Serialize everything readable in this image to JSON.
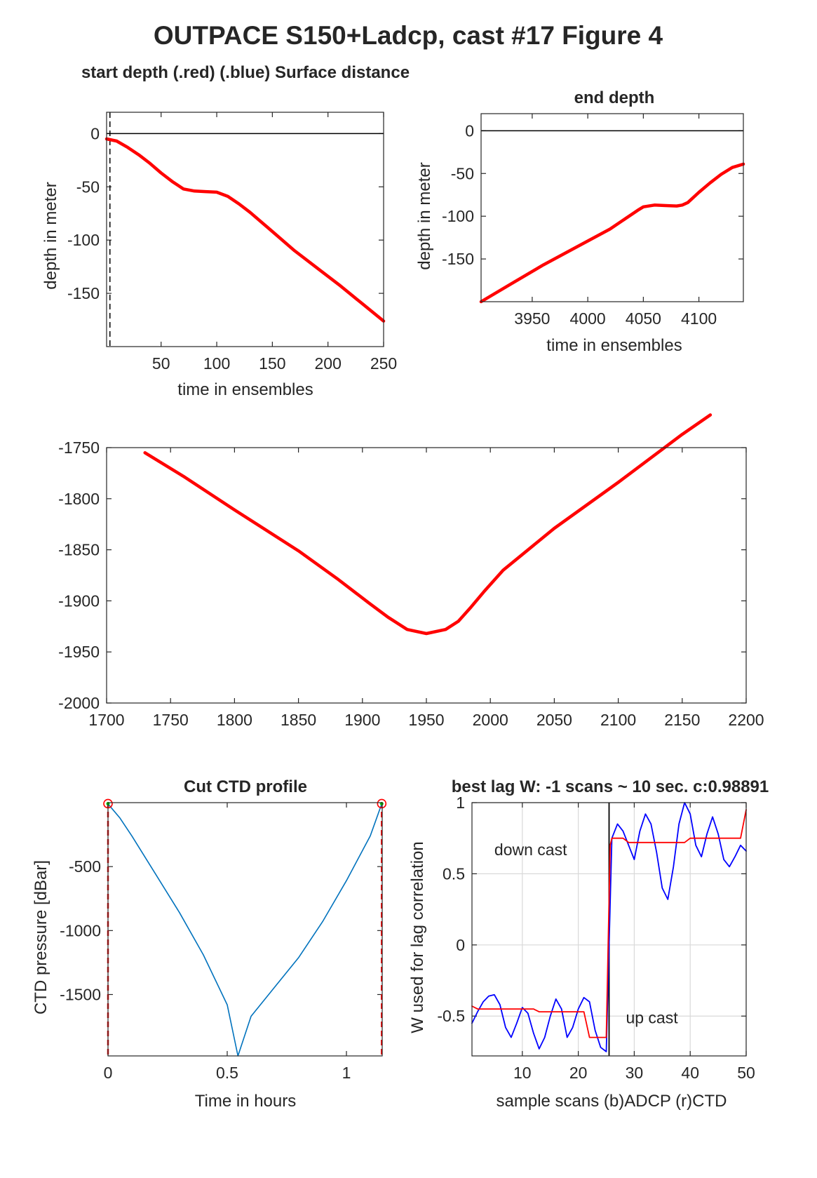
{
  "figure_title": "OUTPACE S150+Ladcp, cast #17    Figure 4",
  "colors": {
    "red": "#ff0000",
    "blue": "#0000ff",
    "ctd": "#0072bd",
    "axis": "#262626",
    "grid": "#d9d9d9",
    "green": "#00cc00"
  },
  "chart_data": [
    {
      "id": "start",
      "type": "line",
      "title": "start depth (.red) (.blue) Surface distance",
      "xlabel": "time in ensembles",
      "ylabel": "depth in meter",
      "xlim": [
        1,
        250
      ],
      "ylim": [
        -200,
        20
      ],
      "xticks": [
        50,
        100,
        150,
        200,
        250
      ],
      "yticks": [
        0,
        -50,
        -100,
        -150
      ],
      "hlines": [
        0
      ],
      "vlines_dashed": [
        4
      ],
      "series": [
        {
          "color": "red",
          "x": [
            1,
            10,
            20,
            30,
            40,
            50,
            60,
            70,
            80,
            90,
            100,
            110,
            120,
            130,
            150,
            170,
            190,
            210,
            230,
            250
          ],
          "y": [
            -5,
            -7,
            -13,
            -20,
            -28,
            -37,
            -45,
            -52,
            -54,
            -54.5,
            -55,
            -59,
            -66,
            -74,
            -92,
            -110,
            -126,
            -142,
            -159,
            -176
          ]
        }
      ]
    },
    {
      "id": "end",
      "type": "line",
      "title": "end depth",
      "xlabel": "time in ensembles",
      "ylabel": "depth in meter",
      "xlim": [
        3904,
        4140
      ],
      "ylim": [
        -200,
        20
      ],
      "xticks": [
        3950,
        4000,
        4050,
        4100
      ],
      "yticks": [
        0,
        -50,
        -100,
        -150
      ],
      "hlines": [
        0
      ],
      "series": [
        {
          "color": "red",
          "x": [
            3904,
            3930,
            3960,
            3990,
            4020,
            4045,
            4050,
            4060,
            4070,
            4080,
            4085,
            4090,
            4100,
            4110,
            4120,
            4130,
            4135,
            4140
          ],
          "y": [
            -200,
            -180,
            -157,
            -136,
            -115,
            -93,
            -89,
            -87,
            -87.5,
            -88,
            -87,
            -84,
            -72,
            -61,
            -51,
            -43,
            -41,
            -39
          ]
        }
      ]
    },
    {
      "id": "middle",
      "type": "line",
      "title": "",
      "xlabel": "",
      "ylabel": "",
      "xlim": [
        1700,
        2200
      ],
      "ylim": [
        -2000,
        -1750
      ],
      "xticks": [
        1700,
        1750,
        1800,
        1850,
        1900,
        1950,
        2000,
        2050,
        2100,
        2150,
        2200
      ],
      "yticks": [
        -1750,
        -1800,
        -1850,
        -1900,
        -1950,
        -2000
      ],
      "series": [
        {
          "color": "red",
          "x": [
            1730,
            1760,
            1800,
            1850,
            1880,
            1905,
            1920,
            1935,
            1950,
            1965,
            1975,
            1985,
            1995,
            2010,
            2050,
            2100,
            2150,
            2172
          ],
          "y": [
            -1755,
            -1778,
            -1811,
            -1851,
            -1878,
            -1902,
            -1916,
            -1928,
            -1932,
            -1928,
            -1920,
            -1906,
            -1891,
            -1870,
            -1829,
            -1784,
            -1737,
            -1718
          ]
        }
      ]
    },
    {
      "id": "ctd",
      "type": "line",
      "title": "Cut CTD profile",
      "xlabel": "Time in hours",
      "ylabel": "CTD pressure [dBar]",
      "xlim": [
        0,
        1.15
      ],
      "ylim": [
        -1980,
        0
      ],
      "xticks": [
        0,
        0.5,
        1
      ],
      "xtick_labels": [
        "0",
        "0.5",
        "1"
      ],
      "yticks": [
        -500,
        -1000,
        -1500
      ],
      "vlines_dashed": [
        0,
        1.148
      ],
      "markers": [
        {
          "x": 0,
          "y": -8
        },
        {
          "x": 1.148,
          "y": -8
        }
      ],
      "series": [
        {
          "color": "ctd",
          "x": [
            0,
            0.05,
            0.1,
            0.2,
            0.3,
            0.4,
            0.5,
            0.545,
            0.6,
            0.7,
            0.8,
            0.9,
            1.0,
            1.1,
            1.148
          ],
          "y": [
            -10,
            -120,
            -260,
            -560,
            -860,
            -1190,
            -1580,
            -1980,
            -1670,
            -1440,
            -1210,
            -930,
            -610,
            -260,
            -10
          ]
        }
      ]
    },
    {
      "id": "lag",
      "type": "line",
      "title": "best lag W: -1 scans ~ 10 sec.  c:0.98891",
      "xlabel": "sample scans (b)ADCP (r)CTD",
      "ylabel": "W used for lag correlation",
      "xlim": [
        1,
        50
      ],
      "ylim": [
        -0.78,
        1
      ],
      "xticks": [
        10,
        20,
        30,
        40,
        50
      ],
      "yticks": [
        1,
        0.5,
        0,
        -0.5
      ],
      "ytick_labels": [
        "1",
        "0.5",
        "0",
        "-0.5"
      ],
      "grid": true,
      "vlines": [
        25.5
      ],
      "annotations": [
        {
          "text": "down cast",
          "x": 5,
          "y": 0.63
        },
        {
          "text": "up cast",
          "x": 28.5,
          "y": -0.55
        }
      ],
      "series": [
        {
          "name": "ADCP",
          "color": "blue",
          "x": [
            1,
            2,
            3,
            4,
            5,
            6,
            7,
            8,
            9,
            10,
            11,
            12,
            13,
            14,
            15,
            16,
            17,
            18,
            19,
            20,
            21,
            22,
            23,
            24,
            25,
            26,
            27,
            28,
            29,
            30,
            31,
            32,
            33,
            34,
            35,
            36,
            37,
            38,
            39,
            40,
            41,
            42,
            43,
            44,
            45,
            46,
            47,
            48,
            49,
            50
          ],
          "y": [
            -0.55,
            -0.47,
            -0.4,
            -0.36,
            -0.35,
            -0.42,
            -0.58,
            -0.65,
            -0.55,
            -0.44,
            -0.48,
            -0.62,
            -0.73,
            -0.65,
            -0.5,
            -0.38,
            -0.45,
            -0.65,
            -0.58,
            -0.45,
            -0.37,
            -0.4,
            -0.6,
            -0.72,
            -0.75,
            0.75,
            0.85,
            0.8,
            0.7,
            0.6,
            0.8,
            0.92,
            0.85,
            0.65,
            0.4,
            0.32,
            0.55,
            0.85,
            1.0,
            0.92,
            0.7,
            0.62,
            0.78,
            0.9,
            0.78,
            0.6,
            0.55,
            0.62,
            0.7,
            0.66
          ]
        },
        {
          "name": "CTD",
          "color": "red",
          "x": [
            1,
            2,
            3,
            12,
            13,
            21,
            22,
            24,
            25,
            25.7,
            26,
            27,
            28,
            29,
            39,
            40,
            49,
            50
          ],
          "y": [
            -0.43,
            -0.45,
            -0.45,
            -0.45,
            -0.47,
            -0.47,
            -0.65,
            -0.65,
            -0.65,
            0.7,
            0.75,
            0.75,
            0.75,
            0.72,
            0.72,
            0.75,
            0.75,
            0.95
          ]
        }
      ]
    }
  ]
}
